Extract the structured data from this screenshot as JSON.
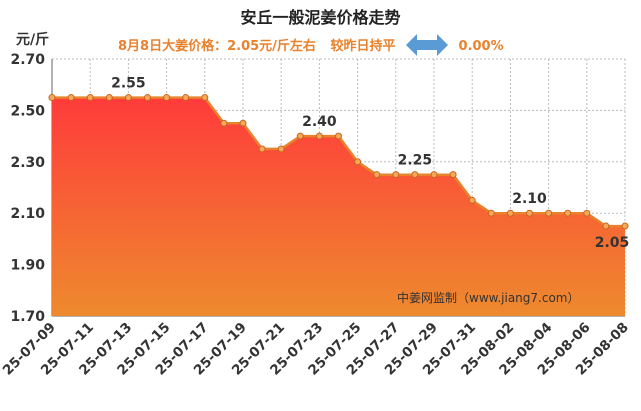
{
  "chart_data": {
    "type": "area",
    "title": "安丘一般泥姜价格走势",
    "subtitle_price": "8月8日大姜价格：2.05元/斤左右",
    "subtitle_status": "较昨日持平",
    "subtitle_change": "0.00%",
    "ylabel": "元/斤",
    "ylim": [
      1.7,
      2.7
    ],
    "yticks": [
      "1.70",
      "1.90",
      "2.10",
      "2.30",
      "2.50",
      "2.70"
    ],
    "ytick_values": [
      1.7,
      1.9,
      2.1,
      2.3,
      2.5,
      2.7
    ],
    "x": [
      "25-07-09",
      "25-07-10",
      "25-07-11",
      "25-07-12",
      "25-07-13",
      "25-07-14",
      "25-07-15",
      "25-07-16",
      "25-07-17",
      "25-07-18",
      "25-07-19",
      "25-07-20",
      "25-07-21",
      "25-07-22",
      "25-07-23",
      "25-07-24",
      "25-07-25",
      "25-07-26",
      "25-07-27",
      "25-07-28",
      "25-07-29",
      "25-07-30",
      "25-07-31",
      "25-08-01",
      "25-08-02",
      "25-08-03",
      "25-08-04",
      "25-08-05",
      "25-08-06",
      "25-08-07",
      "25-08-08"
    ],
    "xtick_labels": [
      "25-07-09",
      "25-07-11",
      "25-07-13",
      "25-07-15",
      "25-07-17",
      "25-07-19",
      "25-07-21",
      "25-07-23",
      "25-07-25",
      "25-07-27",
      "25-07-29",
      "25-07-31",
      "25-08-02",
      "25-08-04",
      "25-08-06",
      "25-08-08"
    ],
    "values": [
      2.55,
      2.55,
      2.55,
      2.55,
      2.55,
      2.55,
      2.55,
      2.55,
      2.55,
      2.45,
      2.45,
      2.35,
      2.35,
      2.4,
      2.4,
      2.4,
      2.3,
      2.25,
      2.25,
      2.25,
      2.25,
      2.25,
      2.15,
      2.1,
      2.1,
      2.1,
      2.1,
      2.1,
      2.1,
      2.05,
      2.05
    ],
    "annotations": [
      {
        "index": 4,
        "text": "2.55"
      },
      {
        "index": 14,
        "text": "2.40"
      },
      {
        "index": 19,
        "text": "2.25"
      },
      {
        "index": 25,
        "text": "2.10"
      },
      {
        "index": 30,
        "text": "2.05"
      }
    ],
    "watermark": "中姜网监制（www.jiang7.com）",
    "colors": {
      "line": "#e8822c",
      "fill_top": "#ff3b3b",
      "fill_bottom": "#ee8a2e",
      "grid": "#bbbbbb",
      "arrow": "#5b9bd5"
    }
  }
}
